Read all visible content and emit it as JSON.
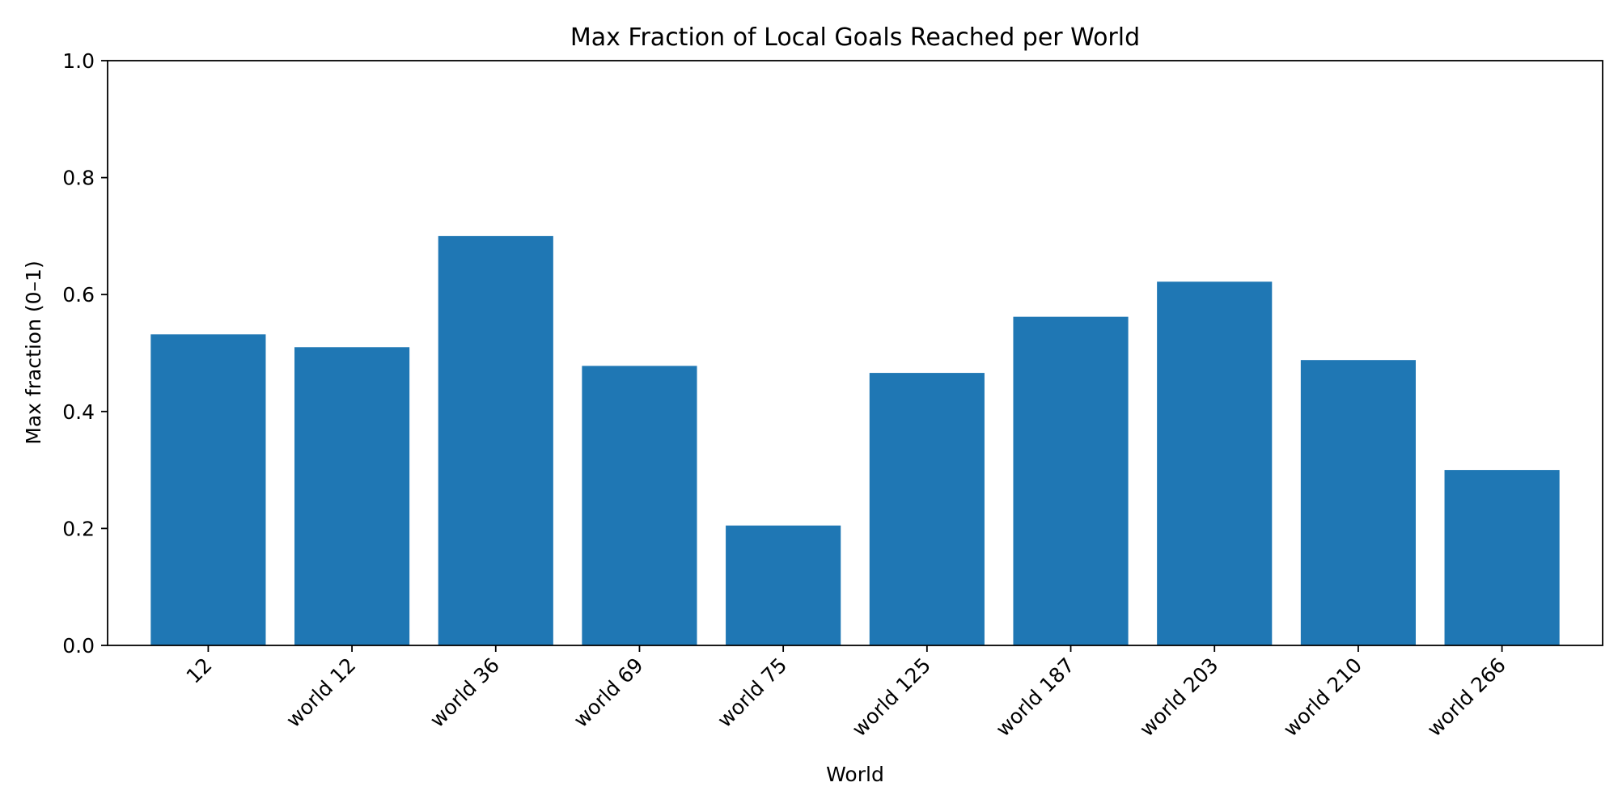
{
  "chart_data": {
    "type": "bar",
    "title": "Max Fraction of Local Goals Reached per World",
    "xlabel": "World",
    "ylabel": "Max fraction (0–1)",
    "categories": [
      "12",
      "world 12",
      "world 36",
      "world 69",
      "world 75",
      "world 125",
      "world 187",
      "world 203",
      "world 210",
      "world 266"
    ],
    "values": [
      0.532,
      0.51,
      0.7,
      0.478,
      0.205,
      0.466,
      0.562,
      0.622,
      0.488,
      0.3
    ],
    "ylim": [
      0,
      1.0
    ],
    "yticks": [
      "0.0",
      "0.2",
      "0.4",
      "0.6",
      "0.8",
      "1.0"
    ],
    "grid": false,
    "bar_color": "#1f77b4"
  }
}
